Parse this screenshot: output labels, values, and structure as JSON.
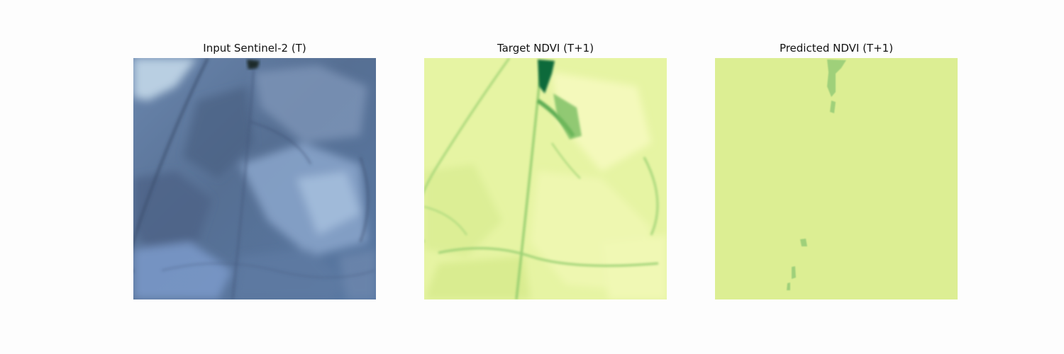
{
  "figure": {
    "panels": [
      {
        "title": "Input Sentinel-2 (T)",
        "image": "satellite-rgb-image"
      },
      {
        "title": "Target NDVI (T+1)",
        "image": "ndvi-target-map"
      },
      {
        "title": "Predicted NDVI (T+1)",
        "image": "ndvi-predicted-map"
      }
    ],
    "colors": {
      "page_background": "#fdfdfd",
      "satellite_base": "#4f6a8f",
      "ndvi_low": "#f3f8b4",
      "ndvi_mid": "#d6ec8c",
      "ndvi_high": "#0b6b3a",
      "prediction_fill": "#dcee93"
    }
  }
}
